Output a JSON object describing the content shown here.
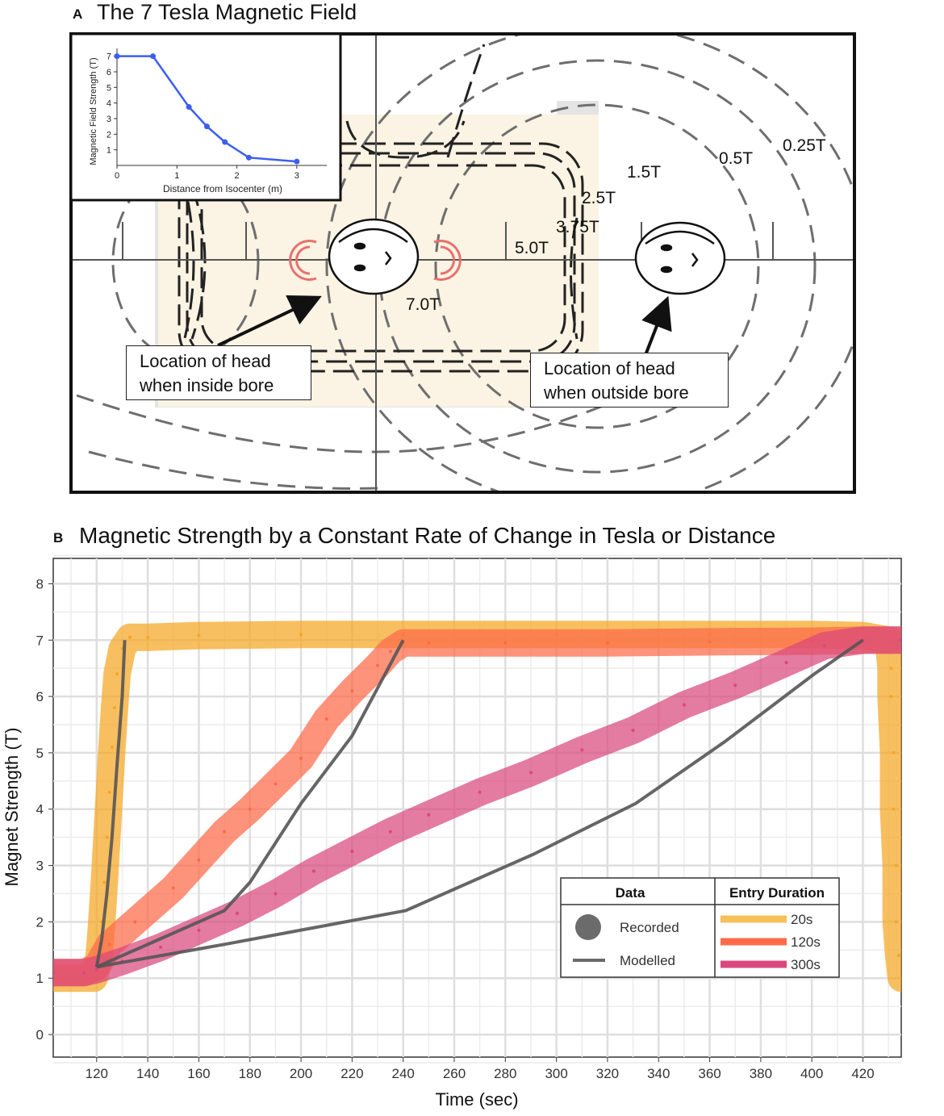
{
  "panel_a": {
    "letter": "A",
    "title": "The 7 Tesla Magnetic Field",
    "contour_labels": [
      "0.25T",
      "0.5T",
      "1.5T",
      "2.5T",
      "3.75T",
      "5.0T",
      "7.0T"
    ],
    "callout_inside": [
      "Location of head",
      "when inside bore"
    ],
    "callout_outside": [
      "Location of head",
      "when outside bore"
    ],
    "inset": {
      "type": "line",
      "xlabel": "Distance from Isocenter (m)",
      "ylabel": "Magnetic Field Strength (T)",
      "xticks": [
        "0",
        "1",
        "2",
        "3"
      ],
      "yticks": [
        "1",
        "2",
        "3",
        "4",
        "5",
        "6",
        "7"
      ],
      "xlim": [
        0,
        3.5
      ],
      "ylim": [
        0,
        7.5
      ],
      "color": "#3a5ef0",
      "points": [
        [
          0,
          7.0
        ],
        [
          0.6,
          7.0
        ],
        [
          1.2,
          3.75
        ],
        [
          1.5,
          2.5
        ],
        [
          1.8,
          1.5
        ],
        [
          2.2,
          0.5
        ],
        [
          3.0,
          0.25
        ]
      ]
    }
  },
  "chart_data": {
    "type": "line",
    "letter": "B",
    "title": "Magnetic Strength by a Constant Rate of Change in Tesla or Distance",
    "xlabel": "Time (sec)",
    "ylabel": "Magnet Strength (T)",
    "xlim": [
      103,
      435
    ],
    "ylim": [
      -0.4,
      8.45
    ],
    "xticks": [
      120,
      140,
      160,
      180,
      200,
      220,
      240,
      260,
      280,
      300,
      320,
      340,
      360,
      380,
      400,
      420
    ],
    "yticks": [
      0,
      1,
      2,
      3,
      4,
      5,
      6,
      7,
      8
    ],
    "grid": true,
    "legend": {
      "placement": "bottom-right",
      "data_header": "Data",
      "duration_header": "Entry Duration",
      "data_items": [
        "Recorded",
        "Modelled"
      ],
      "duration_items": [
        "20s",
        "120s",
        "300s"
      ]
    },
    "series": [
      {
        "name": "20s",
        "color": "#f5a623",
        "kind": "recorded",
        "points": [
          [
            103,
            1.0
          ],
          [
            110,
            1.0
          ],
          [
            119,
            1.0
          ],
          [
            121,
            1.4
          ],
          [
            122,
            2.0
          ],
          [
            123,
            2.7
          ],
          [
            124,
            3.5
          ],
          [
            125,
            4.3
          ],
          [
            126,
            5.1
          ],
          [
            127,
            5.8
          ],
          [
            128,
            6.4
          ],
          [
            130,
            6.85
          ],
          [
            133,
            7.05
          ],
          [
            140,
            7.05
          ],
          [
            160,
            7.08
          ],
          [
            200,
            7.1
          ],
          [
            240,
            7.1
          ],
          [
            300,
            7.1
          ],
          [
            360,
            7.1
          ],
          [
            400,
            7.1
          ],
          [
            420,
            7.08
          ],
          [
            430,
            7.0
          ],
          [
            431,
            6.5
          ],
          [
            431,
            6.0
          ],
          [
            432,
            5.0
          ],
          [
            432,
            4.0
          ],
          [
            433,
            3.0
          ],
          [
            433,
            2.0
          ],
          [
            434,
            1.4
          ],
          [
            435,
            1.0
          ]
        ]
      },
      {
        "name": "120s",
        "color": "#fd6a4a",
        "kind": "recorded",
        "points": [
          [
            103,
            1.1
          ],
          [
            115,
            1.1
          ],
          [
            120,
            1.2
          ],
          [
            125,
            1.6
          ],
          [
            135,
            2.0
          ],
          [
            150,
            2.6
          ],
          [
            160,
            3.1
          ],
          [
            170,
            3.6
          ],
          [
            180,
            4.0
          ],
          [
            190,
            4.45
          ],
          [
            200,
            4.9
          ],
          [
            210,
            5.6
          ],
          [
            220,
            6.1
          ],
          [
            230,
            6.55
          ],
          [
            235,
            6.8
          ],
          [
            240,
            6.95
          ],
          [
            250,
            6.95
          ],
          [
            280,
            6.95
          ],
          [
            320,
            6.95
          ],
          [
            360,
            6.97
          ],
          [
            400,
            6.98
          ],
          [
            420,
            7.0
          ],
          [
            435,
            7.0
          ]
        ]
      },
      {
        "name": "300s",
        "color": "#d9487c",
        "kind": "recorded",
        "points": [
          [
            103,
            1.1
          ],
          [
            115,
            1.1
          ],
          [
            120,
            1.15
          ],
          [
            130,
            1.3
          ],
          [
            145,
            1.55
          ],
          [
            160,
            1.85
          ],
          [
            175,
            2.15
          ],
          [
            190,
            2.5
          ],
          [
            205,
            2.9
          ],
          [
            220,
            3.25
          ],
          [
            235,
            3.6
          ],
          [
            250,
            3.9
          ],
          [
            270,
            4.3
          ],
          [
            290,
            4.65
          ],
          [
            310,
            5.05
          ],
          [
            330,
            5.4
          ],
          [
            350,
            5.85
          ],
          [
            370,
            6.2
          ],
          [
            390,
            6.6
          ],
          [
            405,
            6.9
          ],
          [
            420,
            7.0
          ],
          [
            435,
            7.0
          ]
        ]
      },
      {
        "name": "20s",
        "color": "#555555",
        "kind": "modelled",
        "points": [
          [
            120,
            1.2
          ],
          [
            122,
            1.7
          ],
          [
            124,
            2.5
          ],
          [
            126,
            3.5
          ],
          [
            128,
            4.8
          ],
          [
            130,
            6.0
          ],
          [
            131,
            7.0
          ]
        ]
      },
      {
        "name": "120s",
        "color": "#555555",
        "kind": "modelled",
        "points": [
          [
            120,
            1.2
          ],
          [
            170,
            2.2
          ],
          [
            180,
            2.7
          ],
          [
            200,
            4.1
          ],
          [
            220,
            5.3
          ],
          [
            240,
            7.0
          ]
        ]
      },
      {
        "name": "300s",
        "color": "#555555",
        "kind": "modelled",
        "points": [
          [
            120,
            1.2
          ],
          [
            170,
            1.6
          ],
          [
            241,
            2.2
          ],
          [
            291,
            3.2
          ],
          [
            331,
            4.1
          ],
          [
            366,
            5.2
          ],
          [
            401,
            6.4
          ],
          [
            420,
            7.0
          ]
        ]
      }
    ]
  }
}
